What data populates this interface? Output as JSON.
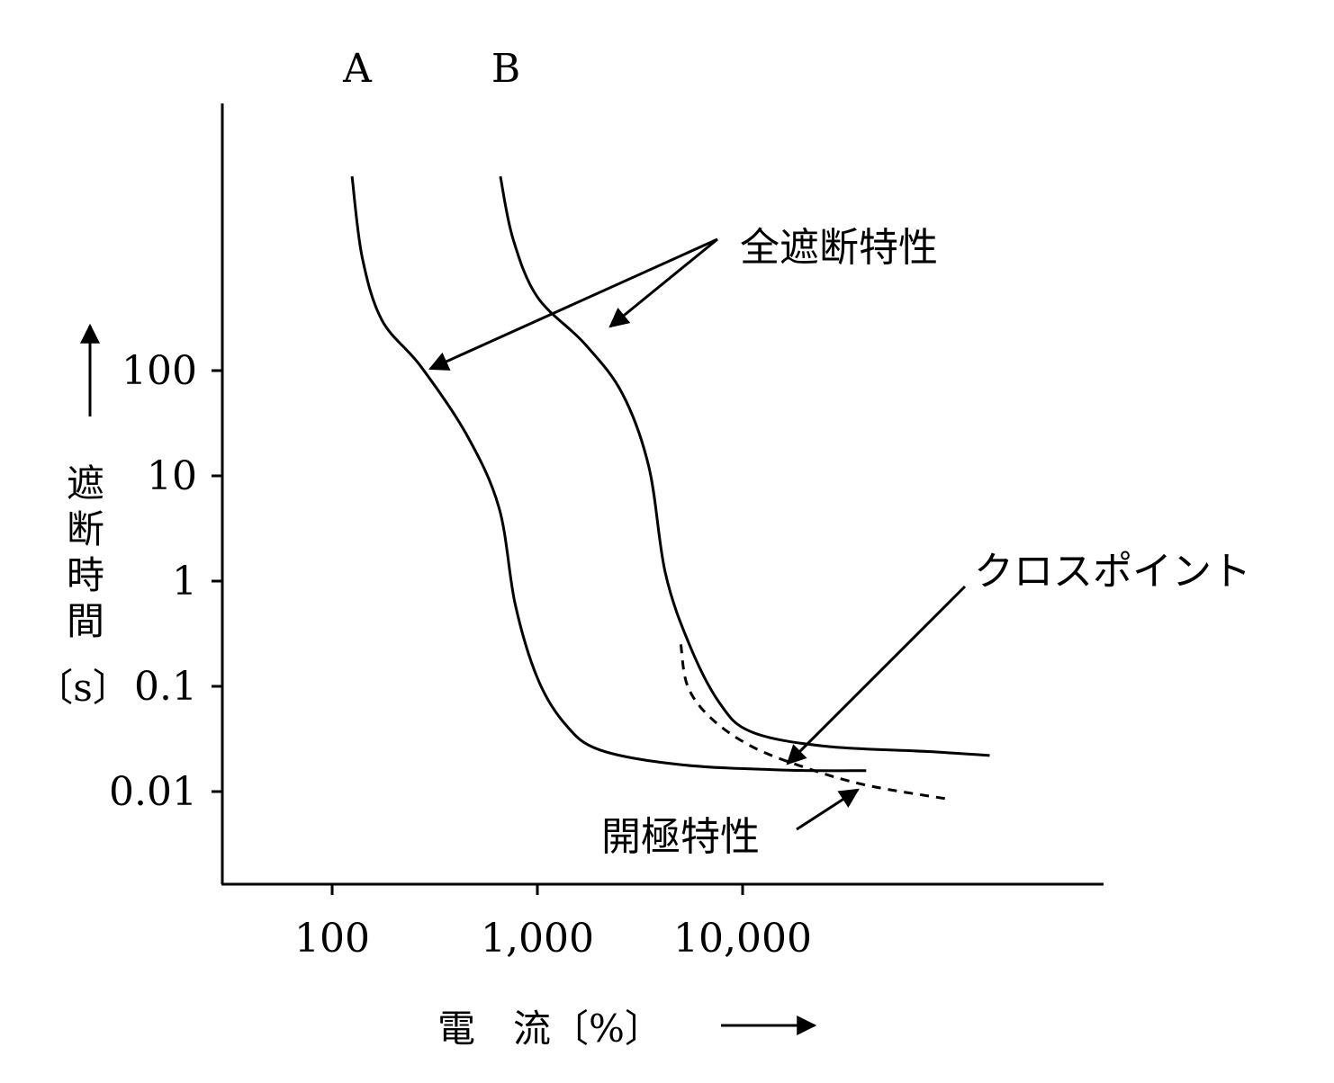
{
  "chart_data": {
    "type": "line",
    "x_scale": "log",
    "y_scale": "log",
    "xlabel": "電　流〔%〕",
    "ylabel": "遮断時間",
    "ylabel_unit": "〔s〕",
    "x_ticks": [
      {
        "value": 100,
        "label": "100"
      },
      {
        "value": 1000,
        "label": "1,000"
      },
      {
        "value": 10000,
        "label": "10,000"
      }
    ],
    "y_ticks": [
      {
        "value": 100,
        "label": "100"
      },
      {
        "value": 10,
        "label": "10"
      },
      {
        "value": 1,
        "label": "1"
      },
      {
        "value": 0.1,
        "label": "0.1"
      },
      {
        "value": 0.01,
        "label": "0.01"
      }
    ],
    "series": [
      {
        "name": "A",
        "style": "solid",
        "points": [
          [
            125,
            7000
          ],
          [
            140,
            1200
          ],
          [
            175,
            300
          ],
          [
            270,
            110
          ],
          [
            450,
            25
          ],
          [
            650,
            5
          ],
          [
            780,
            0.6
          ],
          [
            1000,
            0.12
          ],
          [
            1350,
            0.045
          ],
          [
            2000,
            0.025
          ],
          [
            5000,
            0.018
          ],
          [
            16000,
            0.016
          ],
          [
            40000,
            0.0158
          ]
        ]
      },
      {
        "name": "B",
        "style": "solid",
        "points": [
          [
            660,
            7000
          ],
          [
            760,
            1800
          ],
          [
            1000,
            500
          ],
          [
            1700,
            180
          ],
          [
            2600,
            60
          ],
          [
            3500,
            12
          ],
          [
            4200,
            1.2
          ],
          [
            5500,
            0.25
          ],
          [
            7700,
            0.07
          ],
          [
            11000,
            0.037
          ],
          [
            25000,
            0.027
          ],
          [
            80000,
            0.024
          ],
          [
            160000,
            0.022
          ]
        ]
      },
      {
        "name": "開極特性",
        "style": "dashed",
        "points": [
          [
            5000,
            0.25
          ],
          [
            5400,
            0.1
          ],
          [
            7000,
            0.05
          ],
          [
            11000,
            0.027
          ],
          [
            20000,
            0.017
          ],
          [
            40000,
            0.0115
          ],
          [
            100000,
            0.0085
          ]
        ]
      }
    ],
    "annotations": [
      {
        "text": "全遮断特性",
        "target_series": [
          "A",
          "B"
        ]
      },
      {
        "text": "クロスポイント",
        "target_series": [
          "A",
          "開極特性"
        ]
      },
      {
        "text": "開極特性",
        "target_series": [
          "開極特性"
        ]
      }
    ],
    "grid": false,
    "legend": "none"
  }
}
